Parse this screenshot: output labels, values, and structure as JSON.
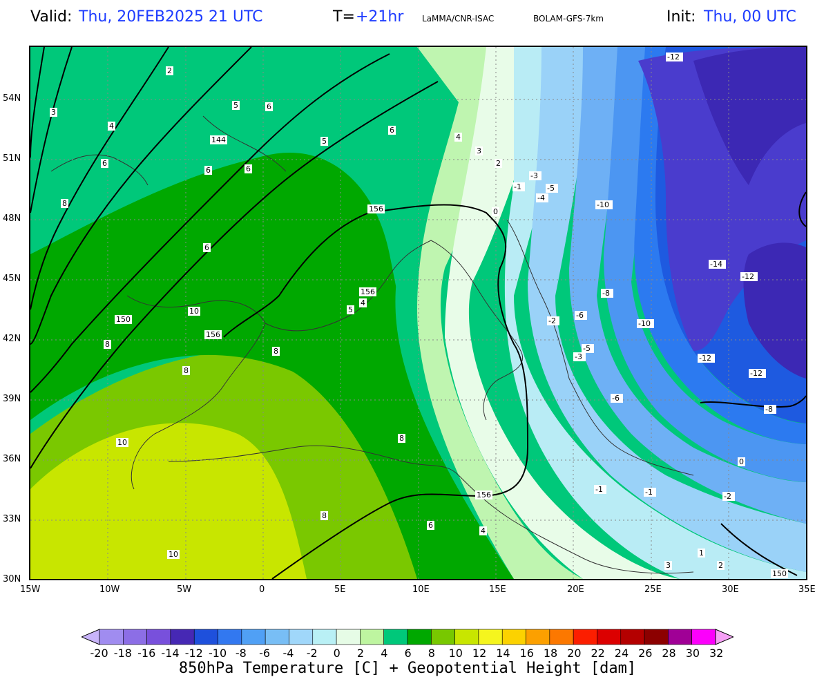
{
  "header": {
    "valid_label": "Valid:",
    "valid_value": "Thu, 20FEB2025  21 UTC",
    "t_label": "T=",
    "t_value": "+21hr",
    "source": "LaMMA/CNR-ISAC",
    "model": "BOLAM-GFS-7km",
    "init_label": "Init:",
    "init_value": "Thu, 00 UTC"
  },
  "axes": {
    "lat_labels": [
      "54N",
      "51N",
      "48N",
      "45N",
      "42N",
      "39N",
      "36N",
      "33N",
      "30N"
    ],
    "lon_labels": [
      "15W",
      "10W",
      "5W",
      "0",
      "5E",
      "10E",
      "15E",
      "20E",
      "25E",
      "30E",
      "35E"
    ]
  },
  "map": {
    "lon_range": [
      -15,
      35
    ],
    "lat_range": [
      30,
      56.5
    ],
    "geopotential_labels": [
      "144",
      "150",
      "156",
      "156",
      "156",
      "156",
      "150"
    ],
    "temp_labels": [
      "3",
      "2",
      "4",
      "5",
      "6",
      "6",
      "6",
      "6",
      "8",
      "6",
      "5",
      "6",
      "4",
      "3",
      "2",
      "0",
      "-1",
      "-3",
      "-5",
      "-4",
      "-10",
      "-12",
      "-14",
      "-12",
      "-8",
      "-6",
      "-10",
      "-12",
      "-12",
      "-8",
      "-5",
      "-3",
      "-6",
      "-2",
      "-1",
      "-1",
      "-2",
      "0",
      "1",
      "2",
      "3",
      "4",
      "8",
      "8",
      "8",
      "10",
      "10",
      "10",
      "8",
      "8",
      "6",
      "5",
      "4"
    ],
    "colors": {
      "c_neg14": "#3c28b4",
      "c_neg12": "#4a3ccd",
      "c_neg10": "#1e5ae0",
      "c_neg8": "#2c7af0",
      "c_neg6": "#4c96f2",
      "c_neg4": "#6eb0f5",
      "c_neg2": "#9ad2f8",
      "c_0": "#b9ecf5",
      "c_2": "#e8fce8",
      "c_4": "#bff5b0",
      "c_6": "#00c87a",
      "c_8": "#00a800",
      "c_10": "#7ac800",
      "c_12": "#c8e600"
    }
  },
  "colorbar": {
    "labels": [
      "-20",
      "-18",
      "-16",
      "-14",
      "-12",
      "-10",
      "-8",
      "-6",
      "-4",
      "-2",
      "0",
      "2",
      "4",
      "6",
      "8",
      "10",
      "12",
      "14",
      "16",
      "18",
      "20",
      "22",
      "24",
      "26",
      "28",
      "30",
      "32"
    ],
    "colors": [
      "#a08cf0",
      "#8c6ee6",
      "#7850dc",
      "#4628b4",
      "#1e50dc",
      "#3278f0",
      "#50a0f5",
      "#78bef5",
      "#a0d7fa",
      "#b9f0f5",
      "#e6fce6",
      "#bef5a0",
      "#00c87a",
      "#00a800",
      "#78c800",
      "#c8e600",
      "#f5f51e",
      "#fcd200",
      "#fca000",
      "#fc7800",
      "#fc1e00",
      "#dc0000",
      "#b40000",
      "#8c0000",
      "#a00096",
      "#fc00fc"
    ],
    "title": "850hPa Temperature [C] + Geopotential Height [dam]"
  }
}
